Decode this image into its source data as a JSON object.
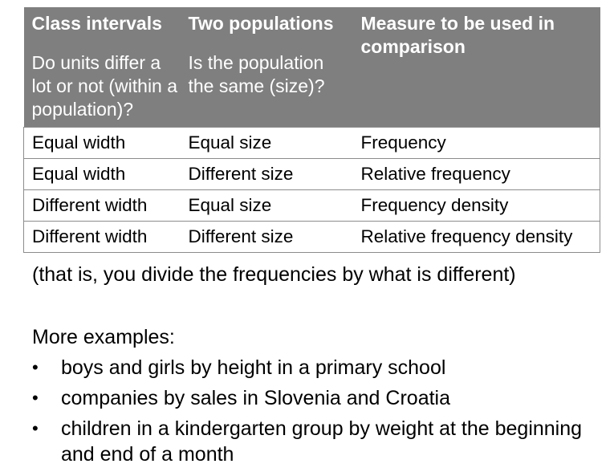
{
  "table": {
    "headers": [
      {
        "title": "Class intervals",
        "subtitle": "Do units differ a lot or not (within a population)?"
      },
      {
        "title": "Two populations",
        "subtitle": "Is the population the same (size)?"
      },
      {
        "title": "Measure to be used in comparison",
        "subtitle": ""
      }
    ],
    "rows": [
      [
        "Equal width",
        "Equal size",
        "Frequency"
      ],
      [
        "Equal width",
        "Different size",
        "Relative frequency"
      ],
      [
        "Different width",
        "Equal size",
        "Frequency density"
      ],
      [
        "Different width",
        "Different size",
        "Relative frequency density"
      ]
    ]
  },
  "note": "(that is, you divide the frequencies by what is different)",
  "examples": {
    "title": "More examples:",
    "bullet": "•",
    "items": [
      "boys and girls by height in a primary school",
      "companies by sales in Slovenia and Croatia",
      "children in a kindergarten group by weight at the beginning and end of a month"
    ]
  }
}
